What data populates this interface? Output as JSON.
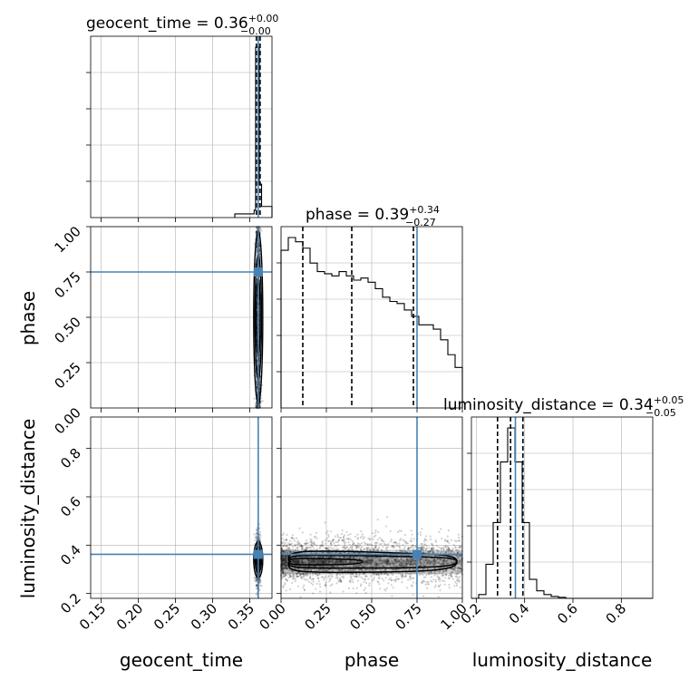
{
  "chart_data": {
    "type": "corner",
    "truth_color": "#4682b4",
    "parameters": [
      {
        "name": "geocent_time",
        "title_lhs": "geocent_time = 0.36",
        "title_sup": "+0.00",
        "title_sub": "−0.00",
        "xlabel": "geocent_time",
        "xticks": [
          "0.15",
          "0.20",
          "0.25",
          "0.30",
          "0.35"
        ],
        "xlim": [
          0.136,
          0.38
        ],
        "truth": 0.3615,
        "quantiles": [
          0.359,
          0.3615,
          0.364
        ],
        "hist": {
          "edges": [
            0.33,
            0.356,
            0.358,
            0.361,
            0.363,
            0.366,
            0.38
          ],
          "counts": [
            1,
            2,
            46,
            46,
            9,
            3
          ]
        }
      },
      {
        "name": "phase",
        "title_lhs": "phase = 0.39",
        "title_sup": "+0.34",
        "title_sub": "−0.27",
        "ylabel": "phase",
        "xlabel": "phase",
        "xticks": [
          "0.00",
          "0.25",
          "0.50",
          "0.75",
          "1.00"
        ],
        "yticks": [
          "0.25",
          "0.50",
          "0.75",
          "1.00"
        ],
        "lim": [
          0.0,
          1.0
        ],
        "truth": 0.75,
        "quantiles": [
          0.12,
          0.39,
          0.73
        ],
        "hist": {
          "edges": [
            0.0,
            0.04,
            0.08,
            0.12,
            0.16,
            0.2,
            0.24,
            0.28,
            0.32,
            0.36,
            0.4,
            0.44,
            0.48,
            0.52,
            0.56,
            0.6,
            0.64,
            0.68,
            0.72,
            0.76,
            0.8,
            0.84,
            0.88,
            0.92,
            0.96,
            1.0
          ],
          "counts": [
            3.7,
            4.0,
            3.9,
            3.75,
            3.4,
            3.2,
            3.15,
            3.1,
            3.2,
            3.1,
            3.0,
            3.05,
            2.95,
            2.8,
            2.6,
            2.5,
            2.45,
            2.3,
            2.15,
            1.95,
            1.95,
            1.85,
            1.6,
            1.25,
            0.95
          ]
        }
      },
      {
        "name": "luminosity_distance",
        "title_lhs": "luminosity_distance = 0.34",
        "title_sup": "+0.05",
        "title_sub": "−0.05",
        "ylabel": "luminosity_distance",
        "xlabel": "luminosity_distance",
        "xticks": [
          "0.2",
          "0.4",
          "0.6",
          "0.8"
        ],
        "yticks": [
          "0.2",
          "0.4",
          "0.6",
          "0.8"
        ],
        "lim": [
          0.18,
          0.93
        ],
        "truth": 0.362,
        "quantiles": [
          0.288,
          0.342,
          0.393
        ],
        "hist": {
          "edges": [
            0.18,
            0.21,
            0.24,
            0.27,
            0.3,
            0.33,
            0.36,
            0.39,
            0.42,
            0.45,
            0.48,
            0.51,
            0.54,
            0.57,
            0.6,
            0.63,
            0.66,
            0.69,
            0.72,
            0.75,
            0.78,
            0.81,
            0.84,
            0.87,
            0.9,
            0.93
          ],
          "counts": [
            0,
            2,
            18,
            40,
            72,
            90,
            72,
            40,
            10,
            4,
            2,
            1,
            0.5,
            0,
            0,
            0,
            0,
            0,
            0,
            0,
            0,
            0,
            0,
            0,
            0
          ]
        }
      }
    ],
    "phase_axis_bottom_tick": "0.00",
    "grid": true
  }
}
